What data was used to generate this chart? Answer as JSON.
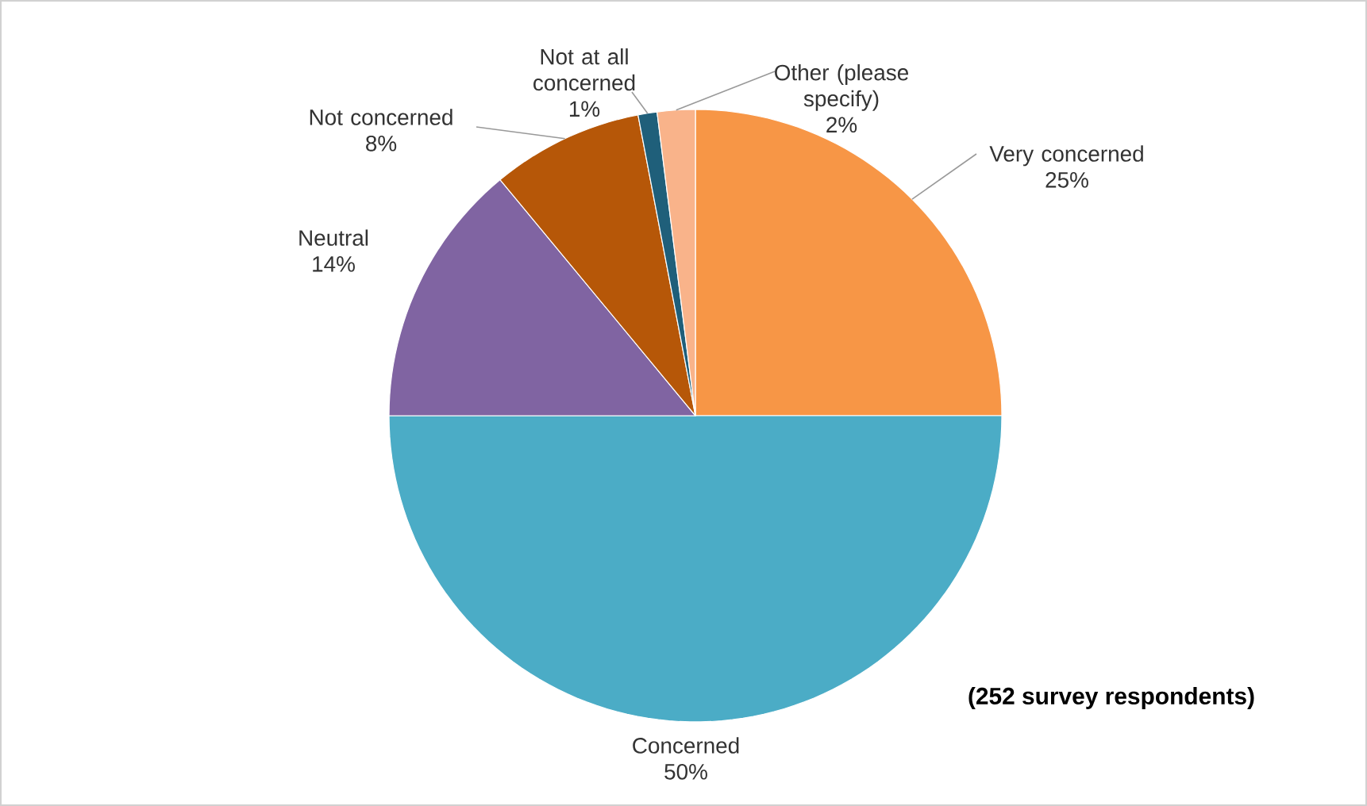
{
  "chart_data": {
    "type": "pie",
    "categories": [
      "Very concerned",
      "Concerned",
      "Neutral",
      "Not concerned",
      "Not at all concerned",
      "Other (please specify)"
    ],
    "values": [
      25,
      50,
      14,
      8,
      1,
      2
    ],
    "value_labels": [
      "25%",
      "50%",
      "14%",
      "8%",
      "1%",
      "2%"
    ],
    "colors": [
      "#f79646",
      "#4bacc6",
      "#8064a2",
      "#b65708",
      "#1f5f7a",
      "#f9b38a"
    ],
    "annotations": [
      "(252 survey respondents)"
    ]
  }
}
